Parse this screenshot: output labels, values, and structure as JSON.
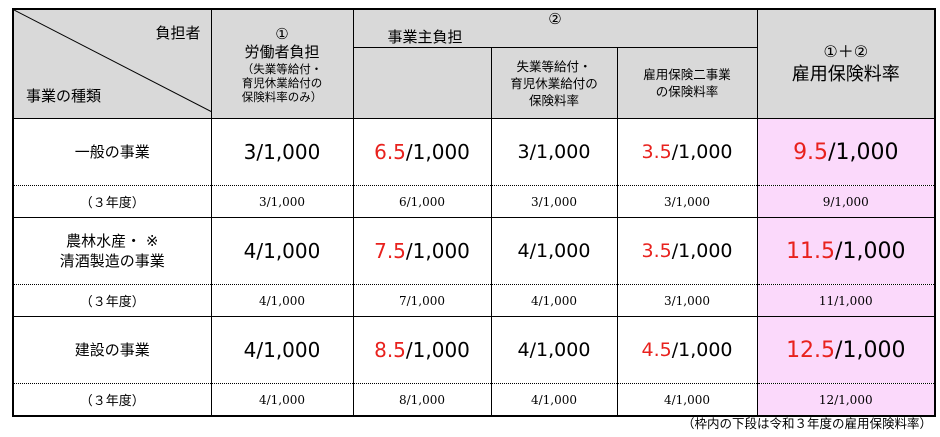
{
  "header": {
    "corner_top": "負担者",
    "corner_bottom": "事業の種類",
    "worker": {
      "num": "①",
      "title": "労働者負担",
      "note_lines": [
        "（失業等給付・",
        "育児休業給付の",
        "保険料率のみ）"
      ]
    },
    "employer": {
      "num": "②",
      "title": "事業主負担"
    },
    "employer_sub1_lines": [
      "失業等給付・",
      "育児休業給付の",
      "保険料率"
    ],
    "employer_sub2_lines": [
      "雇用保険二事業",
      "の保険料率"
    ],
    "sum": {
      "num": "①＋②",
      "title": "雇用保険料率"
    }
  },
  "rows": [
    {
      "type_lines": [
        "一般の事業"
      ],
      "worker": "3/1,000",
      "employer_red": "6.5",
      "employer_rest": "/1,000",
      "sub1": "3/1,000",
      "sub2_red": "3.5",
      "sub2_rest": "/1,000",
      "sum_red": "9.5",
      "sum_rest": "/1,000",
      "prev_label": "（３年度）",
      "prev": [
        "3/1,000",
        "6/1,000",
        "3/1,000",
        "3/1,000",
        "9/1,000"
      ]
    },
    {
      "type_lines": [
        "農林水産・ ※",
        "清酒製造の事業"
      ],
      "worker": "4/1,000",
      "employer_red": "7.5",
      "employer_rest": "/1,000",
      "sub1": "4/1,000",
      "sub2_red": "3.5",
      "sub2_rest": "/1,000",
      "sum_red": "11.5",
      "sum_rest": "/1,000",
      "prev_label": "（３年度）",
      "prev": [
        "4/1,000",
        "7/1,000",
        "4/1,000",
        "3/1,000",
        "11/1,000"
      ]
    },
    {
      "type_lines": [
        "建設の事業"
      ],
      "worker": "4/1,000",
      "employer_red": "8.5",
      "employer_rest": "/1,000",
      "sub1": "4/1,000",
      "sub2_red": "4.5",
      "sub2_rest": "/1,000",
      "sum_red": "12.5",
      "sum_rest": "/1,000",
      "prev_label": "（３年度）",
      "prev": [
        "4/1,000",
        "8/1,000",
        "4/1,000",
        "4/1,000",
        "12/1,000"
      ]
    }
  ],
  "footnote": "（枠内の下段は令和３年度の雇用保険料率）",
  "colors": {
    "header_bg": "#d9d9d9",
    "sum_bg": "#fbd9fb",
    "red": "#e8211d"
  }
}
